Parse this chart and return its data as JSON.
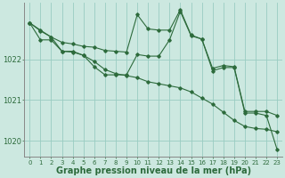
{
  "title": "Graphe pression niveau de la mer (hPa)",
  "background_color": "#cce8e0",
  "plot_bg_color": "#cce8e0",
  "grid_color": "#99ccc2",
  "line_color": "#2d6b3c",
  "marker_color": "#2d6b3c",
  "hours": [
    0,
    1,
    2,
    3,
    4,
    5,
    6,
    7,
    8,
    9,
    10,
    11,
    12,
    13,
    14,
    15,
    16,
    17,
    18,
    19,
    20,
    21,
    22,
    23
  ],
  "series1": [
    1022.9,
    1022.7,
    1022.55,
    1022.2,
    1022.2,
    1022.1,
    1021.95,
    1021.75,
    1021.65,
    1021.6,
    1021.55,
    1021.45,
    1021.4,
    1021.35,
    1021.3,
    1021.2,
    1021.05,
    1020.9,
    1020.7,
    1020.5,
    1020.35,
    1020.3,
    1020.28,
    1020.22
  ],
  "series2": [
    1022.9,
    1022.72,
    1022.55,
    1022.42,
    1022.38,
    1022.32,
    1022.3,
    1022.22,
    1022.2,
    1022.18,
    1023.1,
    1022.75,
    1022.72,
    1022.72,
    1023.22,
    1022.6,
    1022.5,
    1021.78,
    1021.85,
    1021.82,
    1020.72,
    1020.72,
    1020.72,
    1020.62
  ],
  "series3": [
    1022.9,
    1022.48,
    1022.48,
    1022.2,
    1022.18,
    1022.1,
    1021.82,
    1021.62,
    1021.62,
    1021.62,
    1022.12,
    1022.08,
    1022.08,
    1022.48,
    1023.18,
    1022.58,
    1022.5,
    1021.72,
    1021.8,
    1021.8,
    1020.68,
    1020.68,
    1020.62,
    1019.78
  ],
  "yticks": [
    1020,
    1021,
    1022
  ],
  "ylim": [
    1019.6,
    1023.4
  ],
  "xlim": [
    -0.5,
    23.5
  ],
  "title_fontsize": 7,
  "tick_fontsize": 5,
  "label_color": "#2d6b3c"
}
